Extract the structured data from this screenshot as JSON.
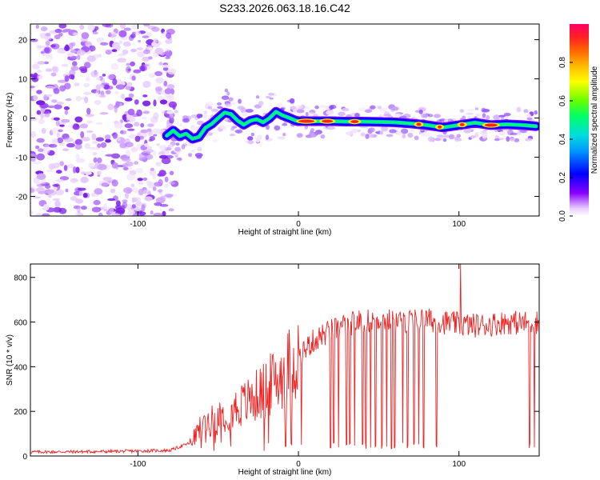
{
  "title": "S233.2026.063.18.16.C42",
  "chart_data": [
    {
      "type": "heatmap",
      "name": "spectrogram",
      "xlabel": "Height of straight line (km)",
      "ylabel": "Frequency (Hz)",
      "xlim": [
        -167,
        150
      ],
      "ylim": [
        -25,
        24
      ],
      "xticks": [
        -100,
        0,
        100
      ],
      "yticks": [
        -20,
        -10,
        0,
        10,
        20
      ],
      "noise_region_x": [
        -167,
        -77
      ],
      "ridge": {
        "x": [
          -82,
          -78,
          -74,
          -70,
          -66,
          -62,
          -58,
          -54,
          -50,
          -46,
          -42,
          -38,
          -34,
          -30,
          -26,
          -22,
          -18,
          -14,
          -10,
          -6,
          -2,
          0,
          10,
          20,
          30,
          40,
          50,
          60,
          70,
          80,
          90,
          100,
          110,
          120,
          130,
          140,
          148
        ],
        "y": [
          -4.5,
          -3.2,
          -4.6,
          -4.0,
          -5.3,
          -4.8,
          -2.5,
          -1.5,
          0.0,
          1.4,
          1.0,
          -0.6,
          -1.7,
          -0.7,
          -0.3,
          -1.1,
          0.0,
          1.6,
          0.7,
          0.1,
          -0.6,
          -0.8,
          -0.8,
          -0.8,
          -0.9,
          -0.9,
          -1.0,
          -1.1,
          -1.4,
          -1.8,
          -2.4,
          -1.8,
          -1.2,
          -1.8,
          -1.6,
          -1.8,
          -2.1
        ]
      },
      "colorbar": {
        "label": "Normalized spectral amplitude",
        "ticks": [
          "0.0",
          "0.2",
          "0.4",
          "0.6",
          "0.8"
        ],
        "range": [
          0,
          1
        ]
      }
    },
    {
      "type": "line",
      "name": "snr",
      "xlabel": "Height of straight line (km)",
      "ylabel": "SNR (10 * v/v)",
      "xlim": [
        -167,
        150
      ],
      "ylim": [
        0,
        860
      ],
      "xticks": [
        -100,
        0,
        100
      ],
      "yticks": [
        0,
        200,
        400,
        600,
        800
      ],
      "series_color": "#ee2222",
      "envelope": {
        "x": [
          -167,
          -120,
          -80,
          -67,
          -60,
          -50,
          -40,
          -30,
          -20,
          -10,
          0,
          10,
          20,
          30,
          40,
          50,
          60,
          70,
          80,
          90,
          100,
          110,
          120,
          130,
          140,
          150
        ],
        "y": [
          18,
          20,
          25,
          60,
          140,
          170,
          210,
          250,
          300,
          370,
          450,
          520,
          560,
          590,
          605,
          610,
          605,
          605,
          610,
          600,
          590,
          585,
          590,
          600,
          595,
          600
        ]
      },
      "spike": {
        "x": 101,
        "y": 860
      },
      "dropouts": [
        20,
        22,
        25,
        30,
        32,
        35,
        40,
        42,
        45,
        48,
        52,
        55,
        58,
        60,
        65,
        68,
        72,
        75,
        78,
        86,
        144,
        147
      ]
    }
  ]
}
